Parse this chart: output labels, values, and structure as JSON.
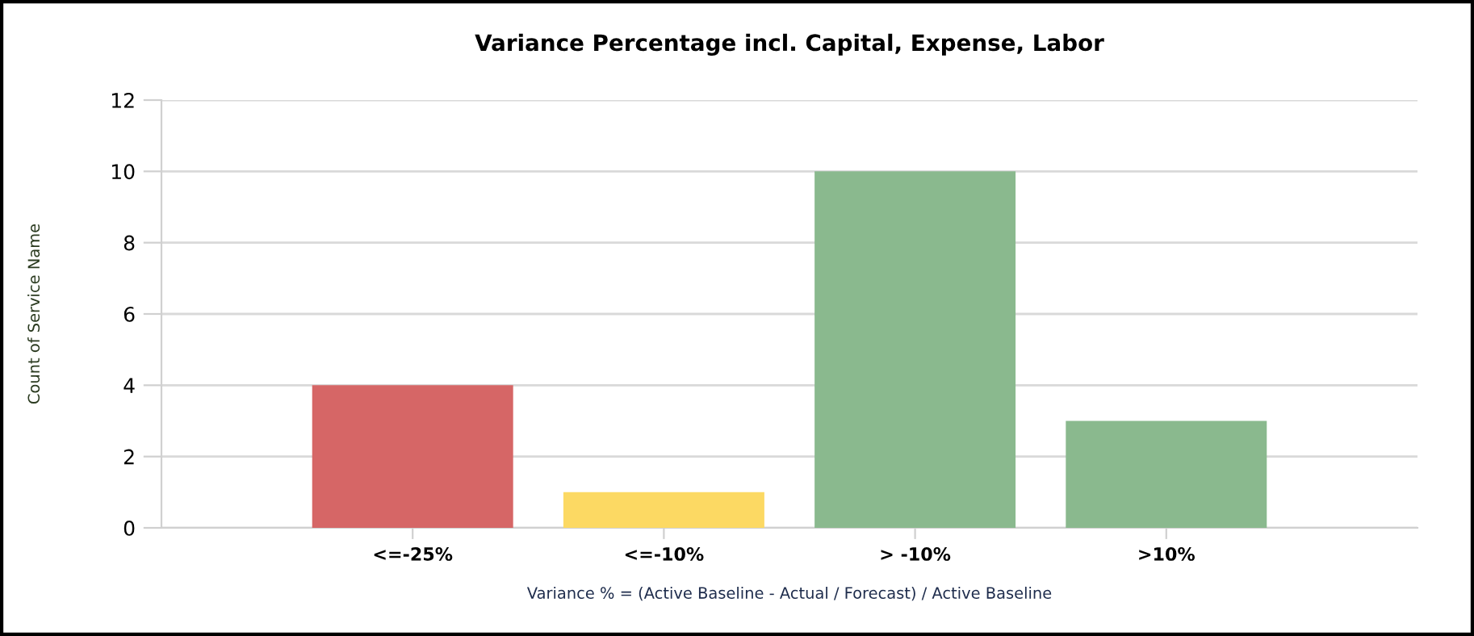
{
  "chart_data": {
    "type": "bar",
    "title": "Variance Percentage incl. Capital, Expense, Labor",
    "xlabel": "Variance % = (Active Baseline - Actual / Forecast) / Active Baseline",
    "ylabel": "Count of Service Name",
    "categories": [
      "<=-25%",
      "<=-10%",
      "> -10%",
      ">10%"
    ],
    "values": [
      4,
      1,
      10,
      3
    ],
    "colors": [
      "#d66666",
      "#fcd963",
      "#8ab98e",
      "#8ab98e"
    ],
    "ylim": [
      0,
      12
    ],
    "yticks": [
      0,
      2,
      4,
      6,
      8,
      10,
      12
    ],
    "grid": "y"
  }
}
